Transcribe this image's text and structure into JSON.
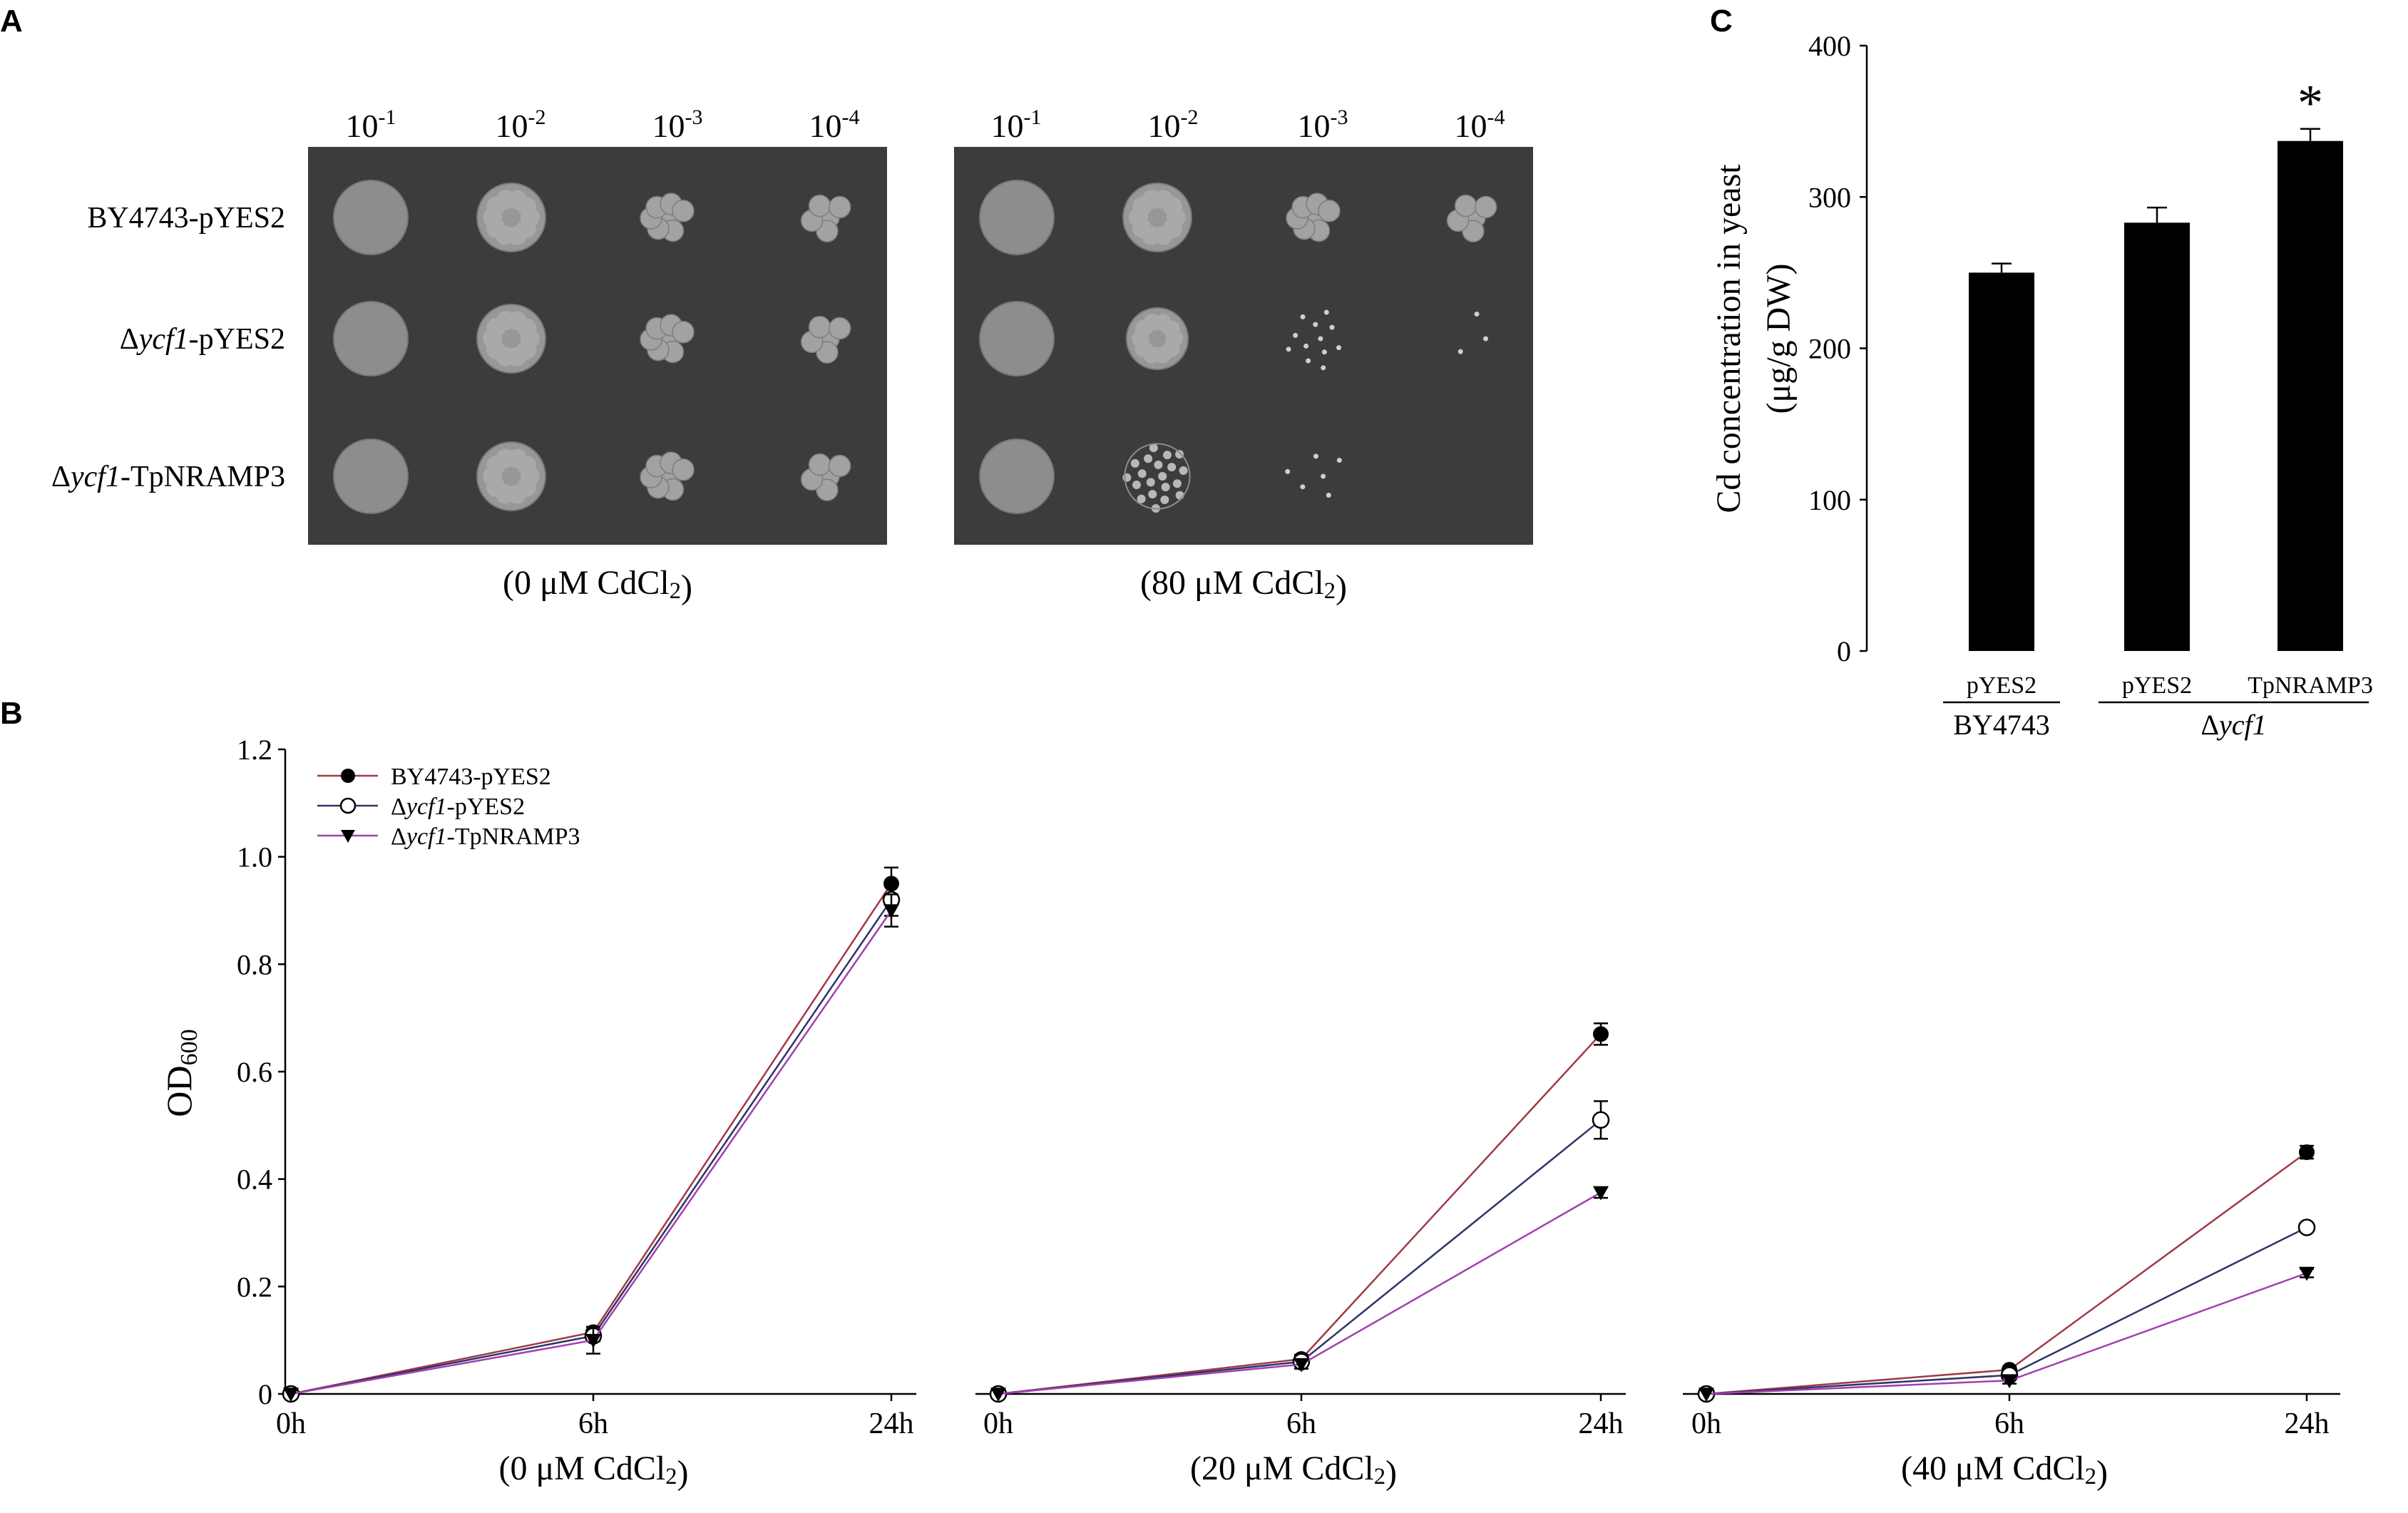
{
  "panels": {
    "A": {
      "label": "A",
      "dilutions": [
        {
          "base": "10",
          "exp": "-1"
        },
        {
          "base": "10",
          "exp": "-2"
        },
        {
          "base": "10",
          "exp": "-3"
        },
        {
          "base": "10",
          "exp": "-4"
        }
      ],
      "rows": [
        {
          "pre": "BY4743-pYES2",
          "delta": "",
          "ital": "",
          "post": ""
        },
        {
          "pre": "",
          "delta": "Δ",
          "ital": "ycf1",
          "post": "-pYES2"
        },
        {
          "pre": "",
          "delta": "Δ",
          "ital": "ycf1",
          "post": "-TpNRAMP3"
        }
      ],
      "plates": [
        {
          "pre": "(0 μM CdCl",
          "sub": "2",
          "post": ")",
          "growth": [
            [
              1,
              1,
              1,
              1
            ],
            [
              1,
              1,
              1,
              1
            ],
            [
              1,
              1,
              1,
              1
            ]
          ]
        },
        {
          "pre": "(80 μM CdCl",
          "sub": "2",
          "post": ")",
          "growth": [
            [
              1,
              1,
              1,
              1
            ],
            [
              1,
              0.75,
              0.3,
              0.05
            ],
            [
              0.9,
              0.5,
              0.15,
              0
            ]
          ]
        }
      ]
    },
    "B": {
      "label": "B"
    },
    "C": {
      "label": "C"
    }
  },
  "chart_data": [
    {
      "type": "line",
      "panel": "B-1",
      "xlabel": {
        "pre": "(0 μM CdCl",
        "sub": "2",
        "post": ")"
      },
      "ylabel": {
        "main": "OD",
        "sub": "600"
      },
      "categories": [
        "0h",
        "6h",
        "24h"
      ],
      "ylim": [
        0,
        1.2
      ],
      "yticks": [
        "0",
        "0.2",
        "0.4",
        "0.6",
        "0.8",
        "1.0",
        "1.2"
      ],
      "series": [
        {
          "name": "BY4743-pYES2",
          "values": [
            0,
            0.115,
            0.95
          ],
          "err": [
            0,
            0.01,
            0.03
          ],
          "color": "#a03a46",
          "marker": "filled-circle"
        },
        {
          "name": "Δycf1-pYES2",
          "values": [
            0,
            0.108,
            0.92
          ],
          "err": [
            0,
            0.01,
            0.03
          ],
          "color": "#2c3566",
          "marker": "open-circle"
        },
        {
          "name": "Δycf1-TpNRAMP3",
          "values": [
            0,
            0.1,
            0.9
          ],
          "err": [
            0,
            0.025,
            0.03
          ],
          "color": "#a33fb0",
          "marker": "filled-triangle"
        }
      ],
      "legend": {
        "position": "top-left",
        "entries": [
          {
            "pre": "BY4743-pYES2",
            "ital": "",
            "post": ""
          },
          {
            "pre": "Δ",
            "ital": "ycf1",
            "post": "-pYES2"
          },
          {
            "pre": "Δ",
            "ital": "ycf1",
            "post": "-TpNRAMP3"
          }
        ]
      }
    },
    {
      "type": "line",
      "panel": "B-2",
      "xlabel": {
        "pre": "(20 μM CdCl",
        "sub": "2",
        "post": ")"
      },
      "categories": [
        "0h",
        "6h",
        "24h"
      ],
      "ylim": [
        0,
        1.2
      ],
      "series": [
        {
          "name": "BY4743-pYES2",
          "values": [
            0,
            0.065,
            0.67
          ],
          "err": [
            0,
            0.008,
            0.02
          ],
          "color": "#a03a46",
          "marker": "filled-circle"
        },
        {
          "name": "Δycf1-pYES2",
          "values": [
            0,
            0.06,
            0.51
          ],
          "err": [
            0,
            0.008,
            0.035
          ],
          "color": "#2c3566",
          "marker": "open-circle"
        },
        {
          "name": "Δycf1-TpNRAMP3",
          "values": [
            0,
            0.055,
            0.375
          ],
          "err": [
            0,
            0.008,
            0.01
          ],
          "color": "#a33fb0",
          "marker": "filled-triangle"
        }
      ]
    },
    {
      "type": "line",
      "panel": "B-3",
      "xlabel": {
        "pre": "(40 μM CdCl",
        "sub": "2",
        "post": ")"
      },
      "categories": [
        "0h",
        "6h",
        "24h"
      ],
      "ylim": [
        0,
        1.2
      ],
      "series": [
        {
          "name": "BY4743-pYES2",
          "values": [
            0,
            0.045,
            0.45
          ],
          "err": [
            0,
            0.006,
            0.012
          ],
          "color": "#a03a46",
          "marker": "filled-circle"
        },
        {
          "name": "Δycf1-pYES2",
          "values": [
            0,
            0.035,
            0.31
          ],
          "err": [
            0,
            0.006,
            0.008
          ],
          "color": "#2c3566",
          "marker": "open-circle"
        },
        {
          "name": "Δycf1-TpNRAMP3",
          "values": [
            0,
            0.025,
            0.225
          ],
          "err": [
            0,
            0.006,
            0.008
          ],
          "color": "#a33fb0",
          "marker": "filled-triangle"
        }
      ]
    },
    {
      "type": "bar",
      "panel": "C",
      "ylabel_line1": "Cd concentration in yeast",
      "ylabel_line2": "(μg/g DW)",
      "categories": [
        "pYES2",
        "pYES2",
        "TpNRAMP3"
      ],
      "groups": [
        {
          "pre": "BY4743",
          "ital": "",
          "span": [
            0,
            0
          ]
        },
        {
          "pre": "Δ",
          "ital": "ycf1",
          "span": [
            1,
            2
          ]
        }
      ],
      "values": [
        250,
        283,
        337
      ],
      "err": [
        6,
        10,
        8
      ],
      "significance": [
        "",
        "",
        "*"
      ],
      "ylim": [
        0,
        400
      ],
      "yticks": [
        "0",
        "100",
        "200",
        "300",
        "400"
      ],
      "bar_color": "#000000"
    }
  ]
}
